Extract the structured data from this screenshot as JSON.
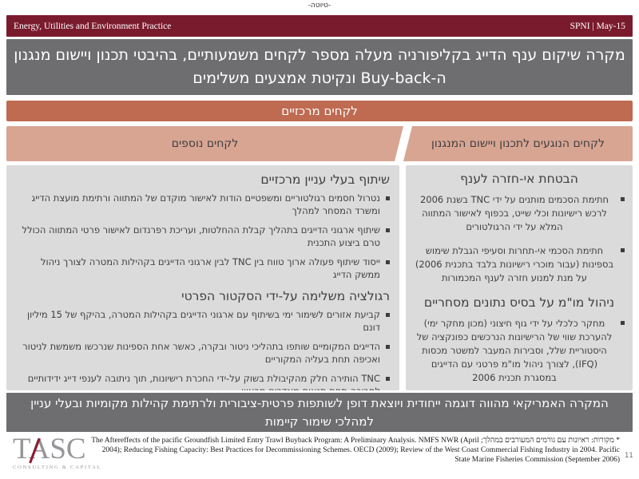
{
  "colors": {
    "maroon": "#7A1B2D",
    "slide_gray": "#6E6E70",
    "terracotta": "#BE6B52",
    "light_terracotta": "#D8A593",
    "box_gray": "#DBDBDB",
    "dark_text": "#3E3E40"
  },
  "draft_label": "-טיוטה-",
  "header": {
    "practice": "Energy, Utilities and Environment Practice",
    "client_date": "SPNI | May-15"
  },
  "title": {
    "line1": "מקרה שיקום ענף הדייג בקליפורניה מעלה מספר לקחים משמעותיים, בהיבטי תכנון ויישום מנגנון",
    "line2": "ה-Buy-back ונקיטת אמצעים משלימים"
  },
  "banner": {
    "label": "לקחים מרכזיים"
  },
  "columns": {
    "right": {
      "header": "לקחים הנוגעים לתכנון ויישום המנגנון",
      "sections": [
        {
          "heading": "הבטחת אי-חזרה לענף",
          "bullets": [
            "חתימת הסכמים מותנים על ידי TNC בשנת 2006 לרכש רישיונות וכלי שייט, בכפוף לאישור המתווה המלא על ידי הרגולטורים",
            "חתימת הסכמי אי-תחרות וסעיפי הגבלת שימוש בספינות (עבור מוכרי רישיונות בלבד בתכנית 2006) על מנת למנוע חזרה לענף המכמורות"
          ]
        },
        {
          "heading": "ניהול מו\"מ על בסיס נתונים מסחריים",
          "bullets": [
            "מחקר כלכלי על ידי גוף חיצוני (מכון מחקר ימי) להערכת שווי של הרישיונות הנרכשים כפונקציה של היסטוריית שלל, וסבירות המעבר למשטר מכסות (IFQ), לצורך ניהול מו\"מ פרטני עם הדייגים במסגרת תכנית 2006"
          ]
        }
      ]
    },
    "left": {
      "header": "לקחים נוספים",
      "sections": [
        {
          "heading": "שיתוף בעלי עניין מרכזיים",
          "bullets": [
            "נטרול חסמים רגולטוריים ומשפטיים הודות לאישור מוקדם של המתווה ורתימת מועצת הדייג ומשרד המסחר למהלך",
            "שיתוף ארגוני הדייגים בתהליך קבלת ההחלטות, ועריכת רפרנדום לאישור פרטי המתווה הכולל טרם ביצוע התכנית",
            "ייסוד שיתוף פעולה ארוך טווח בין TNC לבין ארגוני הדייגים בקהילות המטרה לצורך ניהול ממשק הדייג"
          ]
        },
        {
          "heading": "רגולציה משלימה על-ידי הסקטור הפרטי",
          "bullets": [
            "קביעת אזורים לשימור ימי בשיתוף עם ארגוני הדייגים בקהילות המטרה, בהיקף של 15 מיליון דונם",
            "הדייגים המקומיים שותפו בתהליכי ניטור ובקרה, כאשר אחת הספינות שנרכשו משמשת לניטור ואכיפה תחת בעליה המקוריים",
            "TNC הותירה חלק מהקיבולת בשוק על-ידי החכרת רישיונות, תוך ניתובה לענפי דייג ידידותיים לסביבה תחת תנאים מוגדרים מראש"
          ]
        }
      ]
    }
  },
  "conclusion": "המקרה האמריקאי מהווה דוגמה ייחודית ויוצאת דופן לשותפות פרטית-ציבורית ולרתימת קהילות מקומיות ובעלי עניין למהלכי שימור קיימות",
  "footer": {
    "logo_text": "TASC",
    "logo_tagline": "CONSULTING & CAPITAL",
    "footnote": "* מקורות: ראיונות עם גורמים המעורבים במהלך; The Aftereffects of the pacific Groundfish Limited Entry Trawl Buyback Program: A Preliminary Analysis. NMFS NWR (April 2004); Reducing Fishing Capacity: Best Practices for Decommissioning Schemes. OECD (2009); Review of the West Coast Commercial Fishing Industry in 2004. Pacific State Marine Fisheries Commission (September 2006)",
    "page_number": "11"
  }
}
